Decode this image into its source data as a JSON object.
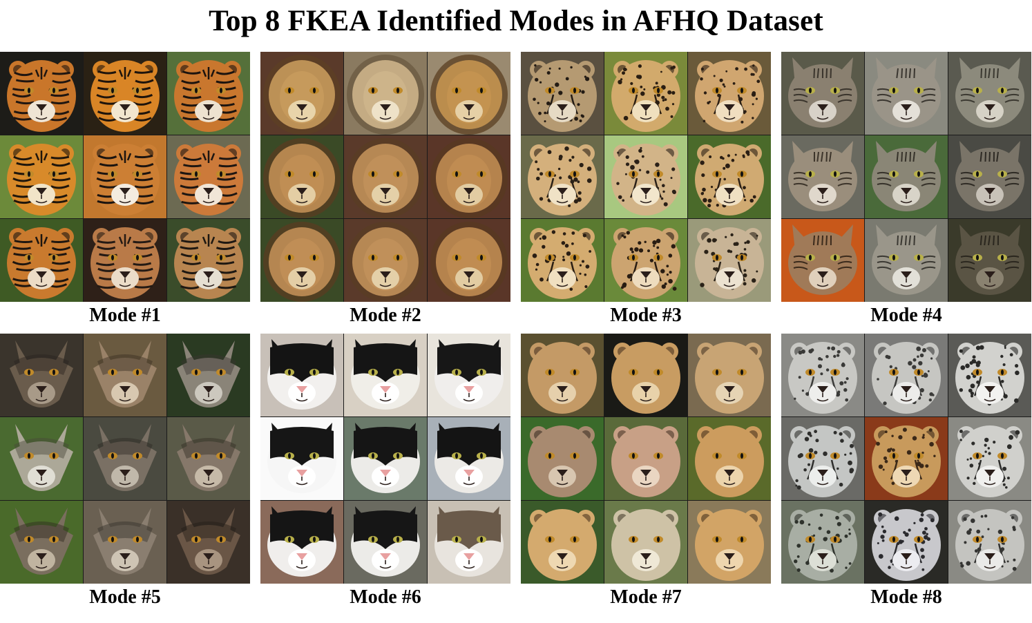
{
  "title": "Top 8 FKEA Identified Modes in AFHQ Dataset",
  "modes": [
    {
      "label": "Mode #1",
      "animal": "tiger",
      "cells": [
        {
          "fur": "#c9762a",
          "dark": "#1f1611",
          "light": "#efe4d4",
          "bg": "#1d1c18",
          "pattern": "stripes"
        },
        {
          "fur": "#d98526",
          "dark": "#1e140c",
          "light": "#f2e6cf",
          "bg": "#2a2114",
          "pattern": "stripes"
        },
        {
          "fur": "#c9772e",
          "dark": "#1c140f",
          "light": "#ede2d0",
          "bg": "#55703a",
          "pattern": "stripes"
        },
        {
          "fur": "#d88a2a",
          "dark": "#1f160c",
          "light": "#f1e4c8",
          "bg": "#6c8a3a",
          "pattern": "stripes"
        },
        {
          "fur": "#cc7f34",
          "dark": "#1b1410",
          "light": "#f4ece0",
          "bg": "#c2782e",
          "pattern": "stripes"
        },
        {
          "fur": "#cc7a3a",
          "dark": "#1d1612",
          "light": "#f1e6d7",
          "bg": "#6c6a52",
          "pattern": "stripes"
        },
        {
          "fur": "#c97a2e",
          "dark": "#1e1610",
          "light": "#ecdcc6",
          "bg": "#3e5a24",
          "pattern": "stripes"
        },
        {
          "fur": "#b97a48",
          "dark": "#241a14",
          "light": "#ebdcc8",
          "bg": "#2e2018",
          "pattern": "stripes"
        },
        {
          "fur": "#b88550",
          "dark": "#1e1812",
          "light": "#e6e0d2",
          "bg": "#3a4c2a",
          "pattern": "stripes"
        }
      ]
    },
    {
      "label": "Mode #2",
      "animal": "lion",
      "cells": [
        {
          "fur": "#c69a5c",
          "dark": "#5e4024",
          "light": "#e8d4aa",
          "bg": "#5a3a2a",
          "pattern": "mane"
        },
        {
          "fur": "#cdb48a",
          "dark": "#6a5a40",
          "light": "#eee2c8",
          "bg": "#8a7a60",
          "pattern": "mane"
        },
        {
          "fur": "#c49350",
          "dark": "#5a3e20",
          "light": "#e6d0a6",
          "bg": "#9a8a70",
          "pattern": "mane"
        },
        {
          "fur": "#c08e54",
          "dark": "#5a3c22",
          "light": "#e4cea4",
          "bg": "#3a4a26",
          "pattern": "mane"
        },
        {
          "fur": "#c0905a",
          "dark": "#5a3e24",
          "light": "#e4d0a8",
          "bg": "#5a3a2a",
          "pattern": "mane"
        },
        {
          "fur": "#c08c52",
          "dark": "#583a20",
          "light": "#e2cca2",
          "bg": "#5a3628",
          "pattern": "mane"
        },
        {
          "fur": "#c08e56",
          "dark": "#5a3c22",
          "light": "#e4cea6",
          "bg": "#3a4a26",
          "pattern": "mane"
        },
        {
          "fur": "#c0905a",
          "dark": "#5a3e24",
          "light": "#e4d0a8",
          "bg": "#5a3a2a",
          "pattern": "mane"
        },
        {
          "fur": "#c08c52",
          "dark": "#583a20",
          "light": "#e2cca2",
          "bg": "#5a3628",
          "pattern": "mane"
        }
      ]
    },
    {
      "label": "Mode #3",
      "animal": "cheetah",
      "cells": [
        {
          "fur": "#b59a72",
          "dark": "#231b14",
          "light": "#e6dac4",
          "bg": "#5a5040",
          "pattern": "spots"
        },
        {
          "fur": "#d2aa6c",
          "dark": "#2a1e12",
          "light": "#f0e0be",
          "bg": "#7a8a3a",
          "pattern": "spots"
        },
        {
          "fur": "#d0a670",
          "dark": "#2a1e14",
          "light": "#f0dec0",
          "bg": "#6a5a3a",
          "pattern": "spots"
        },
        {
          "fur": "#d4b07c",
          "dark": "#2a2016",
          "light": "#f0e2c6",
          "bg": "#6a6a4a",
          "pattern": "spots"
        },
        {
          "fur": "#d2b488",
          "dark": "#2a2018",
          "light": "#f2e6cc",
          "bg": "#a8c880",
          "pattern": "spots"
        },
        {
          "fur": "#d0aa72",
          "dark": "#2a1e14",
          "light": "#f0e0c2",
          "bg": "#4a6a2a",
          "pattern": "spots"
        },
        {
          "fur": "#d4ac70",
          "dark": "#2a1e14",
          "light": "#f0e0c0",
          "bg": "#5a7a30",
          "pattern": "spots"
        },
        {
          "fur": "#cca470",
          "dark": "#281c12",
          "light": "#eedcbe",
          "bg": "#6a8a3a",
          "pattern": "spots"
        },
        {
          "fur": "#c8b496",
          "dark": "#2a2218",
          "light": "#ece2d0",
          "bg": "#9a9a7a",
          "pattern": "spots"
        }
      ]
    },
    {
      "label": "Mode #4",
      "animal": "tabby-cat",
      "cells": [
        {
          "fur": "#8a8070",
          "dark": "#3a342c",
          "light": "#d8d2c8",
          "bg": "#5a5a4a",
          "pattern": "tabby"
        },
        {
          "fur": "#9a9488",
          "dark": "#3a3630",
          "light": "#e4e0d8",
          "bg": "#8a8a80",
          "pattern": "tabby"
        },
        {
          "fur": "#8c8a7c",
          "dark": "#3a3830",
          "light": "#d6d2c6",
          "bg": "#5a5a50",
          "pattern": "tabby"
        },
        {
          "fur": "#9a8e7c",
          "dark": "#3c342a",
          "light": "#e0d8cc",
          "bg": "#6a6a60",
          "pattern": "tabby"
        },
        {
          "fur": "#8a8676",
          "dark": "#36322a",
          "light": "#d8d4c8",
          "bg": "#4a6a3a",
          "pattern": "tabby"
        },
        {
          "fur": "#7a7468",
          "dark": "#2e2a24",
          "light": "#c8c2b8",
          "bg": "#4a4a44",
          "pattern": "tabby"
        },
        {
          "fur": "#a07a58",
          "dark": "#3a2a1c",
          "light": "#e0d0bc",
          "bg": "#c8581a",
          "pattern": "tabby"
        },
        {
          "fur": "#9a968a",
          "dark": "#3a3832",
          "light": "#e2e0d8",
          "bg": "#7a7a70",
          "pattern": "tabby"
        },
        {
          "fur": "#5a5444",
          "dark": "#2a261e",
          "light": "#8a8270",
          "bg": "#3a3a2a",
          "pattern": "tabby"
        }
      ]
    },
    {
      "label": "Mode #5",
      "animal": "wolf",
      "cells": [
        {
          "fur": "#6a5c4c",
          "dark": "#2a241e",
          "light": "#a89a88",
          "bg": "#3a342c",
          "pattern": "wolf"
        },
        {
          "fur": "#9a8268",
          "dark": "#3a2e22",
          "light": "#d8c8b0",
          "bg": "#6a5a40",
          "pattern": "wolf"
        },
        {
          "fur": "#8a8478",
          "dark": "#3a3630",
          "light": "#ccc8be",
          "bg": "#2a3a22",
          "pattern": "wolf"
        },
        {
          "fur": "#aca898",
          "dark": "#4a463a",
          "light": "#e0ded4",
          "bg": "#4a6a30",
          "pattern": "wolf"
        },
        {
          "fur": "#7a7064",
          "dark": "#2e2a24",
          "light": "#c0b8aa",
          "bg": "#4a4a40",
          "pattern": "wolf"
        },
        {
          "fur": "#86786a",
          "dark": "#332c24",
          "light": "#c6baa8",
          "bg": "#5a5a48",
          "pattern": "wolf"
        },
        {
          "fur": "#7a6e5e",
          "dark": "#2e2820",
          "light": "#c0b4a0",
          "bg": "#4a6a2a",
          "pattern": "wolf"
        },
        {
          "fur": "#8a7e70",
          "dark": "#34302a",
          "light": "#cec4b4",
          "bg": "#6a6052",
          "pattern": "wolf"
        },
        {
          "fur": "#6a5646",
          "dark": "#241c16",
          "light": "#a89480",
          "bg": "#3a3028",
          "pattern": "wolf"
        }
      ]
    },
    {
      "label": "Mode #6",
      "animal": "tuxedo-cat",
      "cells": [
        {
          "fur": "#f2f0ee",
          "dark": "#141414",
          "light": "#ffffff",
          "bg": "#c8c0b8",
          "pattern": "tuxedo"
        },
        {
          "fur": "#f0eee8",
          "dark": "#151515",
          "light": "#ffffff",
          "bg": "#d8d0c4",
          "pattern": "tuxedo"
        },
        {
          "fur": "#f0eeec",
          "dark": "#171717",
          "light": "#ffffff",
          "bg": "#e8e4dc",
          "pattern": "tuxedo"
        },
        {
          "fur": "#f6f6f6",
          "dark": "#161616",
          "light": "#ffffff",
          "bg": "#fafafa",
          "pattern": "tuxedo"
        },
        {
          "fur": "#ecebe8",
          "dark": "#151515",
          "light": "#ffffff",
          "bg": "#6a7a6a",
          "pattern": "tuxedo"
        },
        {
          "fur": "#eceae6",
          "dark": "#141414",
          "light": "#ffffff",
          "bg": "#a8b0b8",
          "pattern": "tuxedo"
        },
        {
          "fur": "#f0eeec",
          "dark": "#151515",
          "light": "#ffffff",
          "bg": "#8a6a5a",
          "pattern": "tuxedo"
        },
        {
          "fur": "#ecebe8",
          "dark": "#161616",
          "light": "#ffffff",
          "bg": "#6a6a60",
          "pattern": "tuxedo"
        },
        {
          "fur": "#e8e4de",
          "dark": "#6a5a4a",
          "light": "#ffffff",
          "bg": "#c8c0b4",
          "pattern": "tuxedo"
        }
      ]
    },
    {
      "label": "Mode #7",
      "animal": "lioness",
      "cells": [
        {
          "fur": "#c49a66",
          "dark": "#4a3422",
          "light": "#e6d0ac",
          "bg": "#5a5030",
          "pattern": "plain"
        },
        {
          "fur": "#c89c62",
          "dark": "#4a3420",
          "light": "#e8d2aa",
          "bg": "#1a1a16",
          "pattern": "plain"
        },
        {
          "fur": "#c8a474",
          "dark": "#4a3826",
          "light": "#e6d4b4",
          "bg": "#7a6a50",
          "pattern": "plain"
        },
        {
          "fur": "#a88a70",
          "dark": "#3e3024",
          "light": "#d8c6b0",
          "bg": "#3a6a2a",
          "pattern": "plain"
        },
        {
          "fur": "#c8a086",
          "dark": "#4a3628",
          "light": "#ead6c2",
          "bg": "#5a6a3a",
          "pattern": "plain"
        },
        {
          "fur": "#cc9c5e",
          "dark": "#4a341e",
          "light": "#ecd4ac",
          "bg": "#5a6a2a",
          "pattern": "plain"
        },
        {
          "fur": "#d4aa6e",
          "dark": "#4c3620",
          "light": "#eed8b2",
          "bg": "#3a5a2a",
          "pattern": "plain"
        },
        {
          "fur": "#cec2a6",
          "dark": "#4a4030",
          "light": "#efe8d6",
          "bg": "#6a7a4a",
          "pattern": "plain"
        },
        {
          "fur": "#d2a466",
          "dark": "#4a361e",
          "light": "#eed6ae",
          "bg": "#8a7a5a",
          "pattern": "plain"
        }
      ]
    },
    {
      "label": "Mode #8",
      "animal": "snow-leopard",
      "cells": [
        {
          "fur": "#c8c8c4",
          "dark": "#3a3a38",
          "light": "#eeeeec",
          "bg": "#8a8a86",
          "pattern": "spots"
        },
        {
          "fur": "#c6c6c2",
          "dark": "#3a3a38",
          "light": "#ececea",
          "bg": "#7a7a78",
          "pattern": "spots"
        },
        {
          "fur": "#d2d2ce",
          "dark": "#2a2a28",
          "light": "#f2f2f0",
          "bg": "#5a5a56",
          "pattern": "spots"
        },
        {
          "fur": "#c4c6c4",
          "dark": "#2e2e2c",
          "light": "#eceeec",
          "bg": "#6a6a66",
          "pattern": "spots"
        },
        {
          "fur": "#c89a5c",
          "dark": "#3a2818",
          "light": "#eed8b4",
          "bg": "#8a3a1a",
          "pattern": "spots"
        },
        {
          "fur": "#d0d0cc",
          "dark": "#2c2c2a",
          "light": "#f0f0ee",
          "bg": "#8a8a84",
          "pattern": "spots"
        },
        {
          "fur": "#a8aea4",
          "dark": "#2e322c",
          "light": "#dcdfd6",
          "bg": "#6a7262",
          "pattern": "spots"
        },
        {
          "fur": "#c8c8cc",
          "dark": "#2a2a2e",
          "light": "#ececf0",
          "bg": "#2a2a26",
          "pattern": "spots"
        },
        {
          "fur": "#c4c4c0",
          "dark": "#343432",
          "light": "#eaeae8",
          "bg": "#8a8a84",
          "pattern": "spots"
        }
      ]
    }
  ]
}
